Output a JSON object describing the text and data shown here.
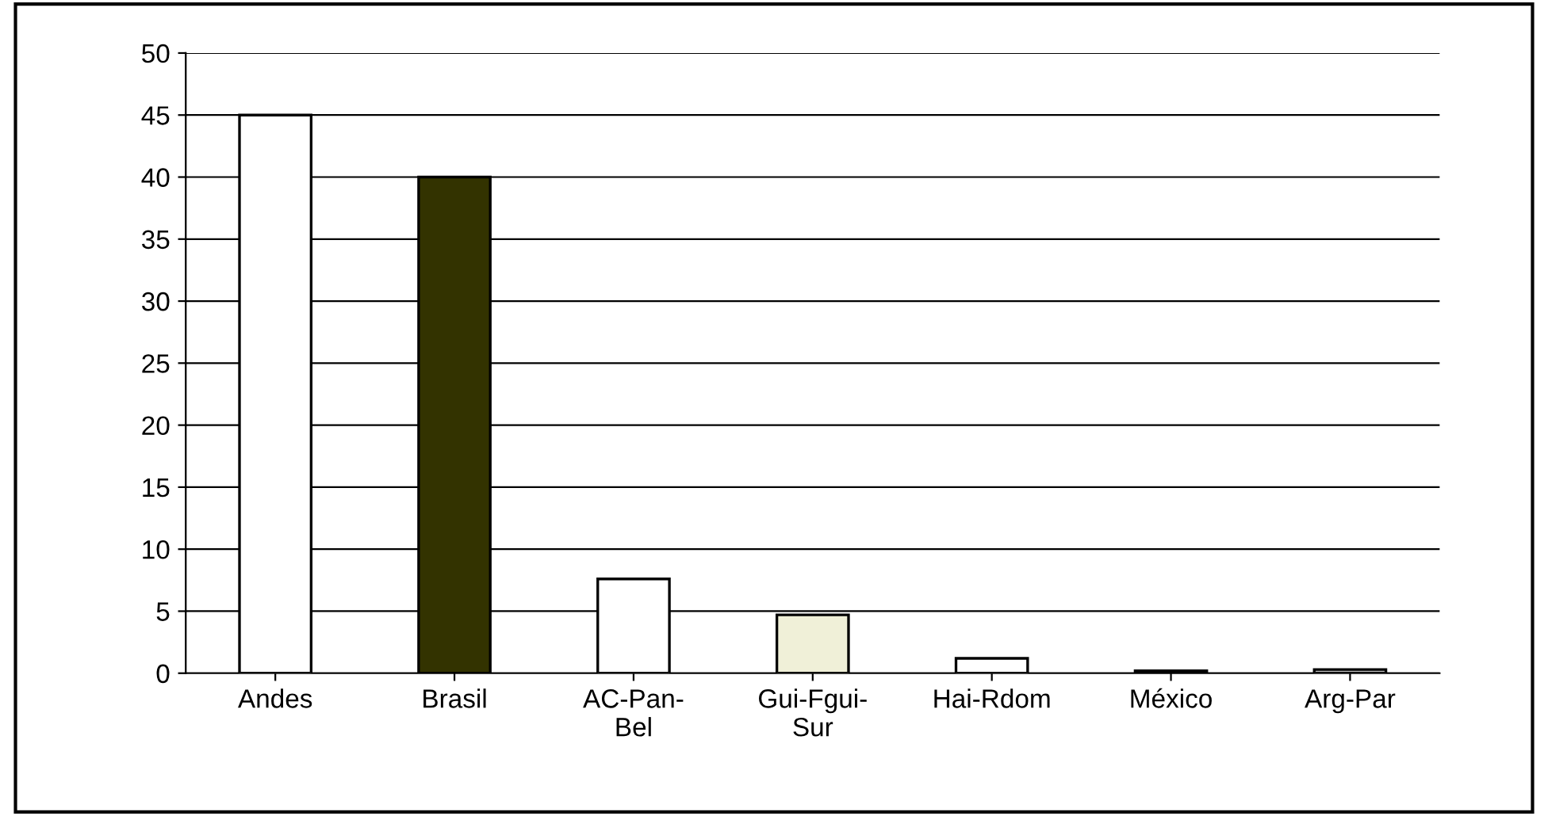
{
  "chart_data": {
    "type": "bar",
    "categories": [
      "Andes",
      "Brasil",
      "AC-Pan-Bel",
      "Gui-Fgui-Sur",
      "Hai-Rdom",
      "México",
      "Arg-Par"
    ],
    "values": [
      45,
      40,
      7.6,
      4.7,
      1.2,
      0.2,
      0.3
    ],
    "colors": [
      "#ffffff",
      "#333300",
      "#ffffff",
      "#f0f0d8",
      "#ffffff",
      "#000000",
      "#c0c0c0"
    ],
    "ylim": [
      0,
      50
    ],
    "yticks": [
      0,
      5,
      10,
      15,
      20,
      25,
      30,
      35,
      40,
      45,
      50
    ],
    "grid": "y"
  }
}
